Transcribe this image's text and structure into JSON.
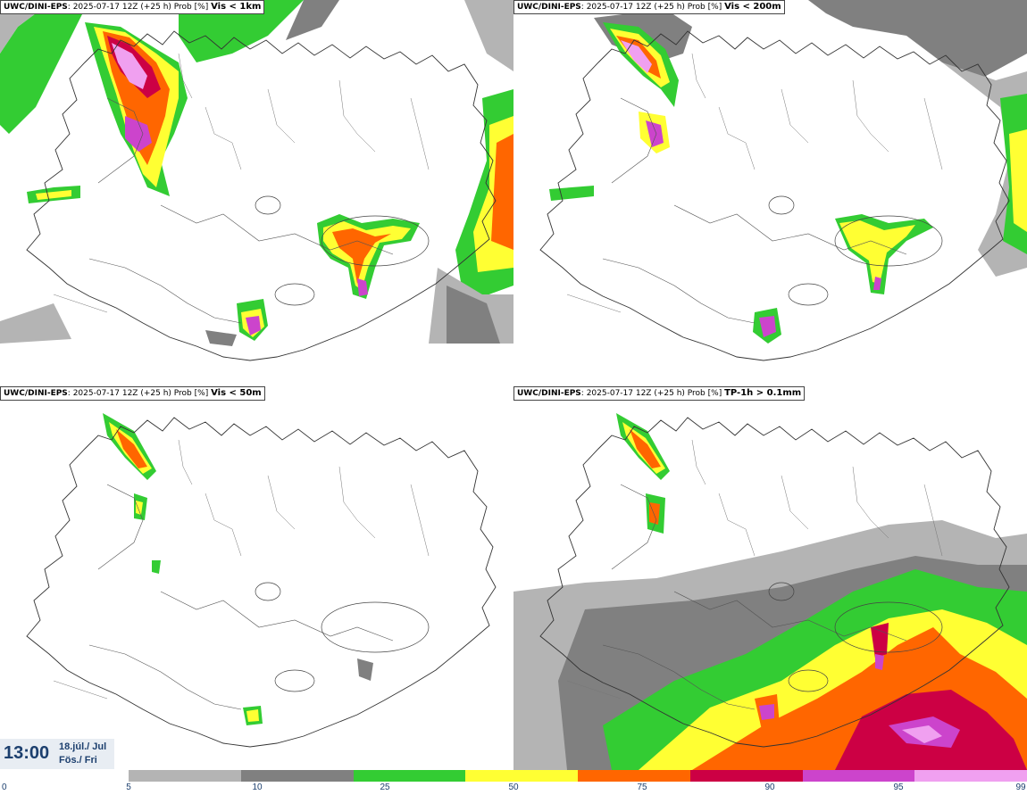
{
  "panels": [
    {
      "model": "UWC/DINI-EPS",
      "run": ": 2025-07-17 12Z (+25 h) Prob [%]",
      "threshold": "Vis < 1km"
    },
    {
      "model": "UWC/DINI-EPS",
      "run": ": 2025-07-17 12Z (+25 h) Prob [%]",
      "threshold": "Vis < 200m"
    },
    {
      "model": "UWC/DINI-EPS",
      "run": ": 2025-07-17 12Z (+25 h) Prob [%]",
      "threshold": "Vis < 50m"
    },
    {
      "model": "UWC/DINI-EPS",
      "run": ": 2025-07-17 12Z (+25 h) Prob [%]",
      "threshold": "TP-1h > 0.1mm"
    }
  ],
  "time": {
    "value": "13:00",
    "date_line1": "18.júl./ Jul",
    "date_line2": "Fös./ Fri"
  },
  "legend": {
    "ticks": [
      "0",
      "5",
      "10",
      "25",
      "50",
      "75",
      "90",
      "95",
      "99"
    ],
    "colors": [
      "#b4b4b4",
      "#808080",
      "#33cc33",
      "#ffff33",
      "#ff6600",
      "#cc0044",
      "#cc44cc",
      "#f0a0f0"
    ]
  }
}
